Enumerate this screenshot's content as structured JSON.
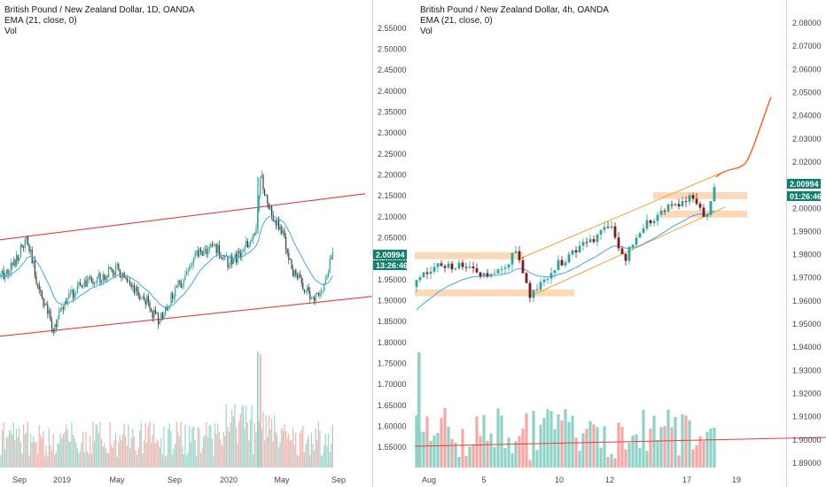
{
  "colors": {
    "up": "#26a69a",
    "down": "#7a1c1c",
    "down_candle_left": "#3d3d3d",
    "vol_up": "#8fd3c7",
    "vol_down": "#f7a8a5",
    "ema": "#42a5f5",
    "channel_red": "#ef3b36",
    "channel_orange": "#f7a035",
    "zone": "#fcd9b6",
    "projection": "#f36a2b",
    "badge_bg": "#0f7f6f"
  },
  "chart_data": [
    {
      "type": "candlestick",
      "title": "British Pound / New Zealand Dollar, 1D, OANDA",
      "ema_label": "EMA (21, close, 0)",
      "vol_label": "Vol",
      "y_ticks": [
        "2.55000",
        "2.50000",
        "2.45000",
        "2.40000",
        "2.35000",
        "2.30000",
        "2.25000",
        "2.20000",
        "2.15000",
        "2.10000",
        "2.05000",
        "2.00000",
        "1.95000",
        "1.90000",
        "1.85000",
        "1.80000",
        "1.75000",
        "1.70000",
        "1.65000",
        "1.60000",
        "1.55000"
      ],
      "x_ticks": [
        "Sep",
        "2019",
        "May",
        "Sep",
        "2020",
        "May",
        "Sep"
      ],
      "last_price": "2.00994",
      "countdown": "13:26:46",
      "ylim": [
        1.525,
        2.575
      ],
      "price_path": [
        [
          "Sep 2018",
          1.955
        ],
        [
          "Oct 2018",
          1.985
        ],
        [
          "Nov 2018",
          2.045
        ],
        [
          "Dec 2018",
          1.93
        ],
        [
          "Jan 2019",
          1.835
        ],
        [
          "Feb 2019",
          1.905
        ],
        [
          "Mar 2019",
          1.94
        ],
        [
          "Apr 2019",
          1.955
        ],
        [
          "May 2019",
          1.975
        ],
        [
          "Jun 2019",
          1.925
        ],
        [
          "Jul 2019",
          1.9
        ],
        [
          "Aug 2019",
          1.85
        ],
        [
          "Sep 2019",
          1.92
        ],
        [
          "Oct 2019",
          2.01
        ],
        [
          "Nov 2019",
          2.03
        ],
        [
          "Dec 2019",
          1.99
        ],
        [
          "Jan 2020",
          2.01
        ],
        [
          "Feb 2020",
          2.06
        ],
        [
          "Mar 2020",
          2.2
        ],
        [
          "Apr 2020",
          2.09
        ],
        [
          "May 2020",
          2.07
        ],
        [
          "Jun 2020",
          1.97
        ],
        [
          "Jul 2020",
          1.905
        ],
        [
          "Aug 2020",
          1.935
        ],
        [
          "Aug 2020 end",
          2.00994
        ]
      ],
      "channel": {
        "upper": [
          [
            2.045,
            "Sep 2018"
          ],
          [
            2.155,
            "Sep 2020"
          ]
        ],
        "lower": [
          [
            1.815,
            "Sep 2018"
          ],
          [
            1.91,
            "Sep 2020"
          ]
        ]
      }
    },
    {
      "type": "candlestick",
      "title": "British Pound / New Zealand Dollar, 4h, OANDA",
      "ema_label": "EMA (21, close, 0)",
      "vol_label": "Vol",
      "y_ticks": [
        "2.08000",
        "2.07000",
        "2.06000",
        "2.05000",
        "2.04000",
        "2.03000",
        "2.02000",
        "2.01000",
        "2.00000",
        "1.99000",
        "1.98000",
        "1.97000",
        "1.96000",
        "1.95000",
        "1.94000",
        "1.93000",
        "1.92000",
        "1.91000",
        "1.90000",
        "1.89000"
      ],
      "x_ticks": [
        "Aug",
        "5",
        "10",
        "12",
        "17",
        "19"
      ],
      "last_price": "2.00994",
      "countdown": "01:26:46",
      "ylim": [
        1.8835,
        2.087
      ],
      "zones": [
        [
          1.978,
          1.981
        ],
        [
          1.962,
          1.965
        ],
        [
          2.004,
          2.007
        ],
        [
          1.996,
          1.999
        ]
      ],
      "projection_end": 2.048
    }
  ]
}
